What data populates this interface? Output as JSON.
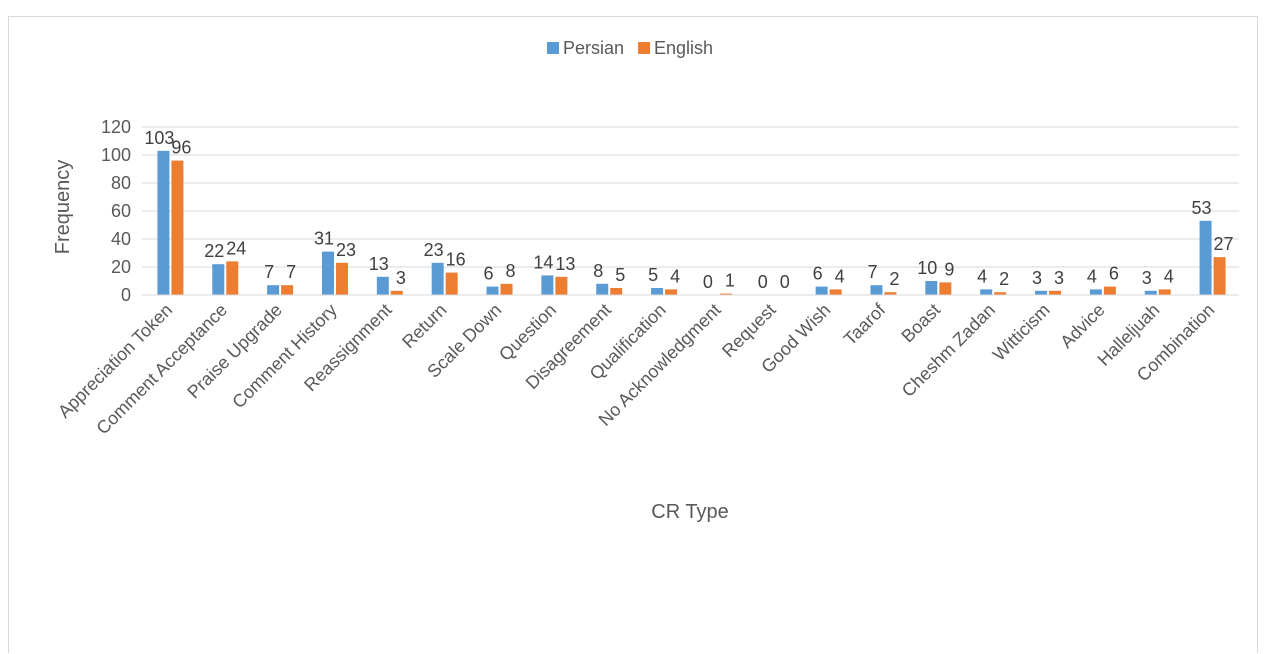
{
  "chart_data": {
    "type": "bar",
    "title": "",
    "xlabel": "CR Type",
    "ylabel": "Frequency",
    "ylim": [
      0,
      120
    ],
    "yticks": [
      0,
      20,
      40,
      60,
      80,
      100,
      120
    ],
    "grid": true,
    "legend_position": "top",
    "categories": [
      "Appreciation Token",
      "Comment Acceptance",
      "Praise Upgrade",
      "Comment History",
      "Reassignment",
      "Return",
      "Scale Down",
      "Question",
      "Disagreement",
      "Qualification",
      "No Acknowledgment",
      "Request",
      "Good Wish",
      "Taarof",
      "Boast",
      "Cheshm Zadan",
      "Witticism",
      "Advice",
      "Halleljuah",
      "Combination"
    ],
    "series": [
      {
        "name": "Persian",
        "color": "#5b9bd5",
        "values": [
          103,
          22,
          7,
          31,
          13,
          23,
          6,
          14,
          8,
          5,
          0,
          0,
          6,
          7,
          10,
          4,
          3,
          4,
          3,
          53
        ]
      },
      {
        "name": "English",
        "color": "#ed7d31",
        "values": [
          96,
          24,
          7,
          23,
          3,
          16,
          8,
          13,
          5,
          4,
          1,
          0,
          4,
          2,
          9,
          2,
          3,
          6,
          4,
          27
        ]
      }
    ]
  }
}
